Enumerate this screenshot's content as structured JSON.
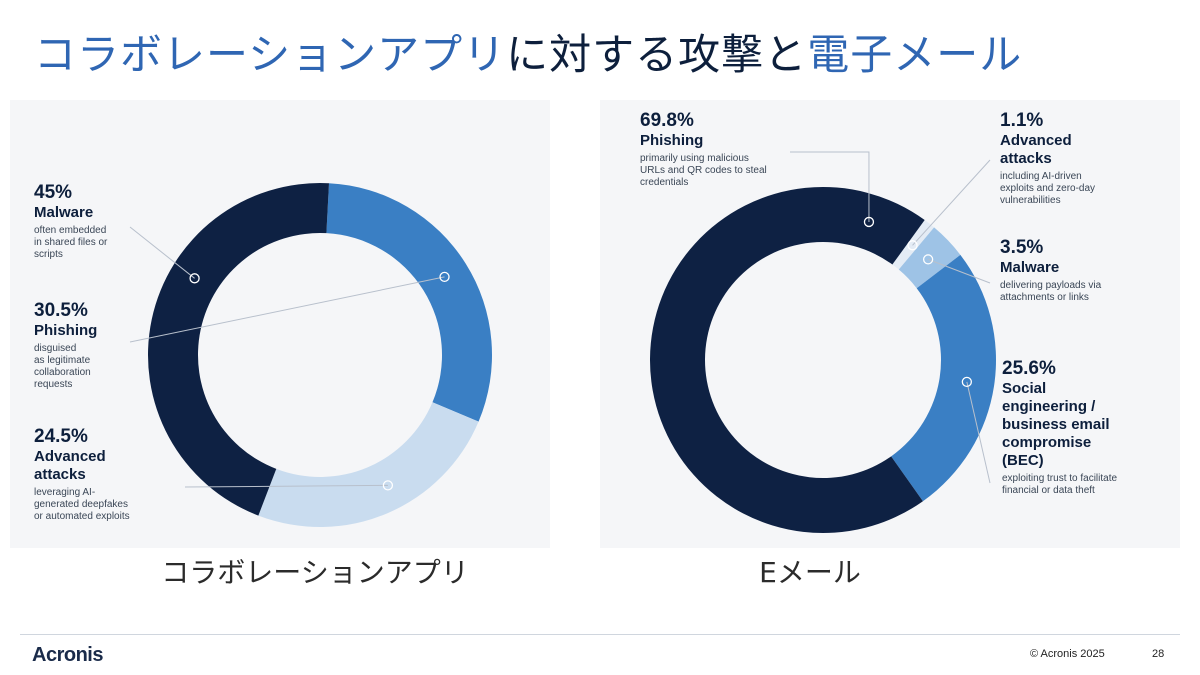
{
  "slide": {
    "title_part1": "コラボレーションアプリ",
    "title_part2": "に対する攻撃と",
    "title_part3": "電子メール"
  },
  "footer": {
    "logo": "Acronis",
    "copyright": "© Acronis 2025",
    "page_number": "28"
  },
  "colors": {
    "navy": "#0e2143",
    "mid_blue": "#3a7fc4",
    "light_blue": "#c9dcef",
    "pale_blue": "#9ec3e6",
    "very_light": "#e4ecf5"
  },
  "chart_data": [
    {
      "type": "pie",
      "caption": "コラボレーションアプリ",
      "slices": [
        {
          "percent_label": "45%",
          "label": "Malware",
          "description": "often embedded\nin shared files or\nscripts",
          "value": 45.0,
          "color": "#0e2143"
        },
        {
          "percent_label": "30.5%",
          "label": "Phishing",
          "description": "disguised\nas legitimate\ncollaboration\nrequests",
          "value": 30.5,
          "color": "#3a7fc4"
        },
        {
          "percent_label": "24.5%",
          "label": "Advanced\nattacks",
          "description": "leveraging AI-\ngenerated deepfakes\nor automated exploits",
          "value": 24.5,
          "color": "#c9dcef"
        }
      ]
    },
    {
      "type": "pie",
      "caption": "Eメール",
      "slices": [
        {
          "percent_label": "69.8%",
          "label": "Phishing",
          "description": "primarily using malicious\nURLs and QR codes to steal\ncredentials",
          "value": 69.8,
          "color": "#0e2143"
        },
        {
          "percent_label": "1.1%",
          "label": "Advanced\nattacks",
          "description": "including AI-driven\nexploits and zero-day\nvulnerabilities",
          "value": 1.1,
          "color": "#e4ecf5"
        },
        {
          "percent_label": "3.5%",
          "label": "Malware",
          "description": "delivering payloads via\nattachments or links",
          "value": 3.5,
          "color": "#9ec3e6"
        },
        {
          "percent_label": "25.6%",
          "label": "Social\nengineering /\nbusiness email\ncompromise\n(BEC)",
          "description": "exploiting trust to facilitate\nfinancial or data theft",
          "value": 25.6,
          "color": "#3a7fc4"
        }
      ]
    }
  ]
}
